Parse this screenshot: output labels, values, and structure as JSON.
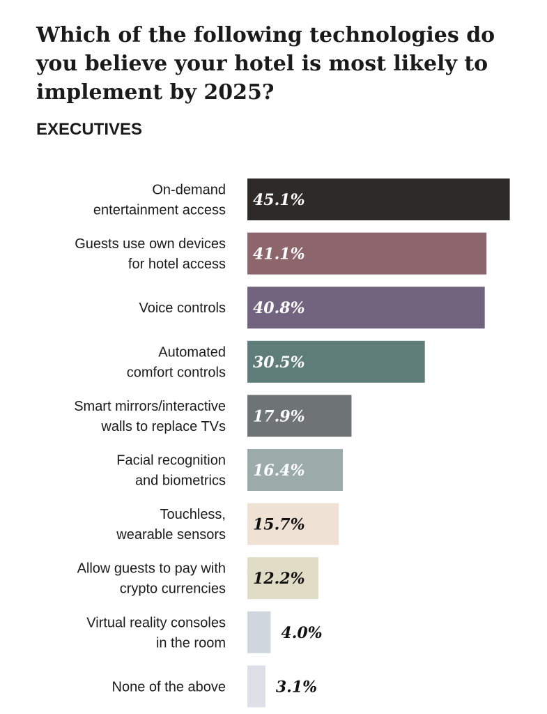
{
  "title": "Which of the following technologies do you believe your hotel is most likely to implement by 2025?",
  "subtitle": "EXECUTIVES",
  "chart_data": {
    "type": "bar",
    "orientation": "horizontal",
    "title": "Which of the following technologies do you believe your hotel is most likely to implement by 2025?",
    "subtitle": "EXECUTIVES",
    "xlabel": "",
    "ylabel": "",
    "xlim": [
      0,
      50
    ],
    "grid": false,
    "legend": "none",
    "categories": [
      [
        "On-demand",
        "entertainment access"
      ],
      [
        "Guests use own devices",
        "for hotel access"
      ],
      [
        "Voice controls"
      ],
      [
        "Automated",
        "comfort controls"
      ],
      [
        "Smart mirrors/interactive",
        "walls to replace TVs"
      ],
      [
        "Facial recognition",
        "and biometrics"
      ],
      [
        "Touchless,",
        "wearable sensors"
      ],
      [
        "Allow guests to pay with",
        "crypto currencies"
      ],
      [
        "Virtual reality consoles",
        "in the room"
      ],
      [
        "None of the above"
      ]
    ],
    "values": [
      45.1,
      41.1,
      40.8,
      30.5,
      17.9,
      16.4,
      15.7,
      12.2,
      4.0,
      3.1
    ],
    "value_labels": [
      "45.1%",
      "41.1%",
      "40.8%",
      "30.5%",
      "17.9%",
      "16.4%",
      "15.7%",
      "12.2%",
      "4.0%",
      "3.1%"
    ],
    "colors": [
      "#2e2a28",
      "#8d656c",
      "#72637f",
      "#5e7d78",
      "#6d7473",
      "#9aabaa",
      "#efe2d4",
      "#e1dcc6",
      "#d0d7df",
      "#dde1e7"
    ],
    "label_colors": [
      "#ffffff",
      "#ffffff",
      "#ffffff",
      "#ffffff",
      "#ffffff",
      "#ffffff",
      "#111111",
      "#111111",
      "#111111",
      "#111111"
    ]
  }
}
